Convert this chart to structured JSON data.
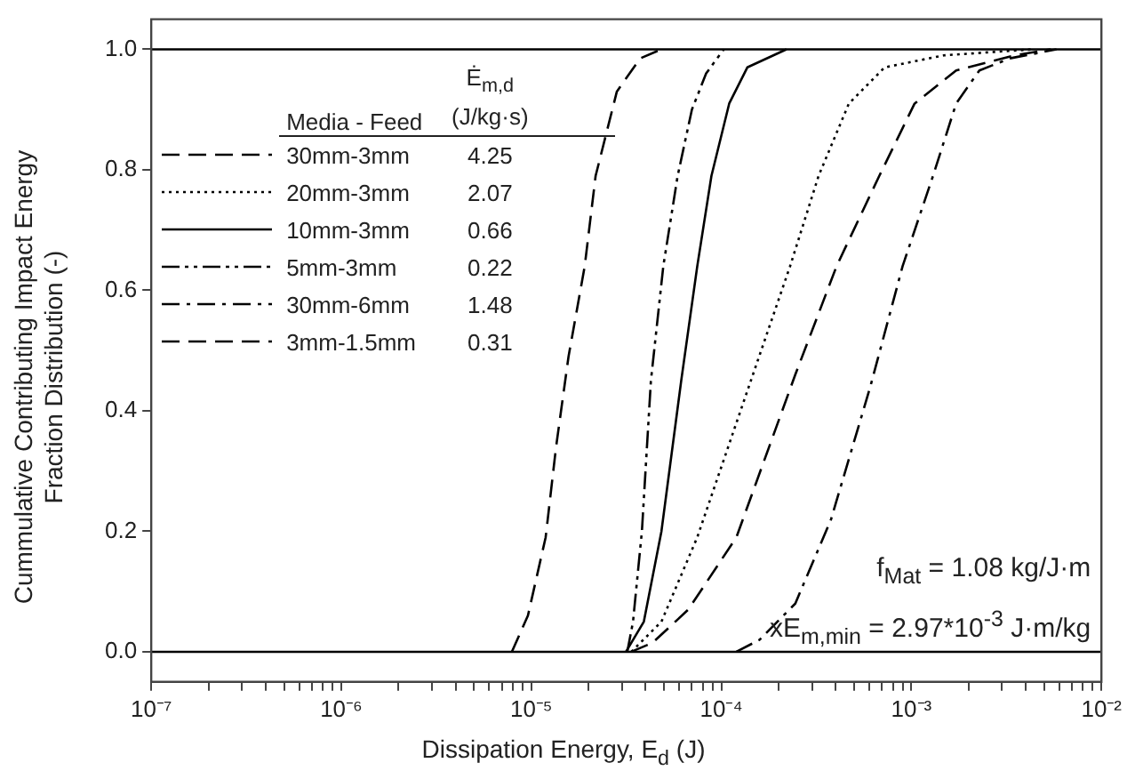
{
  "chart_data": {
    "type": "line",
    "xlabel": "Dissipation Energy, E$_{d}$ (J)",
    "ylabel": "Cummulative Contributing Impact Energy\nFraction Distribution (-)",
    "legend_title": "Media - Feed",
    "log": "x",
    "marker": "none",
    "grid": false,
    "legend": "top left",
    "xlim": [
      1e-07,
      0.01
    ],
    "ylim": [
      -0.05,
      1.05
    ],
    "xticks": [
      {
        "value": 1e-07,
        "label": "10⁻⁷"
      },
      {
        "value": 2e-07,
        "label": null
      },
      {
        "value": 3e-07,
        "label": null
      },
      {
        "value": 4e-07,
        "label": null
      },
      {
        "value": 5e-07,
        "label": null
      },
      {
        "value": 6e-07,
        "label": null
      },
      {
        "value": 7e-07,
        "label": null
      },
      {
        "value": 8e-07,
        "label": null
      },
      {
        "value": 9e-07,
        "label": null
      },
      {
        "value": 1e-06,
        "label": "10⁻⁶"
      },
      {
        "value": 2e-06,
        "label": null
      },
      {
        "value": 3e-06,
        "label": null
      },
      {
        "value": 4e-06,
        "label": null
      },
      {
        "value": 5e-06,
        "label": null
      },
      {
        "value": 6e-06,
        "label": null
      },
      {
        "value": 7e-06,
        "label": null
      },
      {
        "value": 8e-06,
        "label": null
      },
      {
        "value": 9e-06,
        "label": null
      },
      {
        "value": 1e-05,
        "label": "10⁻⁵"
      },
      {
        "value": 2e-05,
        "label": null
      },
      {
        "value": 3e-05,
        "label": null
      },
      {
        "value": 4e-05,
        "label": null
      },
      {
        "value": 5e-05,
        "label": null
      },
      {
        "value": 6e-05,
        "label": null
      },
      {
        "value": 7e-05,
        "label": null
      },
      {
        "value": 8e-05,
        "label": null
      },
      {
        "value": 9e-05,
        "label": null
      },
      {
        "value": 0.0001,
        "label": "10⁻⁴"
      },
      {
        "value": 0.0002,
        "label": null
      },
      {
        "value": 0.0003,
        "label": null
      },
      {
        "value": 0.0004,
        "label": null
      },
      {
        "value": 0.0005,
        "label": null
      },
      {
        "value": 0.0006,
        "label": null
      },
      {
        "value": 0.0007,
        "label": null
      },
      {
        "value": 0.0008,
        "label": null
      },
      {
        "value": 0.0009,
        "label": null
      },
      {
        "value": 0.001,
        "label": "10⁻³"
      },
      {
        "value": 0.002,
        "label": null
      },
      {
        "value": 0.003,
        "label": null
      },
      {
        "value": 0.004,
        "label": null
      },
      {
        "value": 0.005,
        "label": null
      },
      {
        "value": 0.006,
        "label": null
      },
      {
        "value": 0.007,
        "label": null
      },
      {
        "value": 0.008,
        "label": null
      },
      {
        "value": 0.009,
        "label": null
      },
      {
        "value": 0.01,
        "label": "10⁻²"
      }
    ],
    "yticks": [
      {
        "value": 0,
        "label": "0.0"
      },
      {
        "value": 0.2,
        "label": "0.2"
      },
      {
        "value": 0.4,
        "label": "0.4"
      },
      {
        "value": 0.6,
        "label": "0.6"
      },
      {
        "value": 0.8,
        "label": "0.8"
      },
      {
        "value": 1,
        "label": "1.0"
      }
    ],
    "ref_lines": [
      {
        "axis": "y",
        "value": 0,
        "color": "#000000",
        "line_style": "solid"
      },
      {
        "axis": "y",
        "value": 1,
        "color": "#000000",
        "line_style": "solid"
      }
    ],
    "series": [
      {
        "name": "30mm-3mm",
        "color": "#000000",
        "line_style": "dashed",
        "x": [
          3.36e-05,
          4.35e-05,
          6.7e-05,
          0.00012,
          0.000245,
          0.000404,
          0.000678,
          0.00104,
          0.00172,
          0.00351,
          0.0054
        ],
        "values": [
          0,
          0.015,
          0.07,
          0.19,
          0.46,
          0.64,
          0.79,
          0.91,
          0.965,
          0.99,
          1
        ]
      },
      {
        "name": "20mm-3mm",
        "color": "#000000",
        "line_style": "dotted",
        "x": [
          3.36e-05,
          4.84e-05,
          7.47e-05,
          0.000143,
          0.00023,
          0.000325,
          0.000469,
          0.000723,
          0.00148,
          0.00435
        ],
        "values": [
          0,
          0.05,
          0.19,
          0.45,
          0.64,
          0.79,
          0.91,
          0.97,
          0.99,
          1
        ]
      },
      {
        "name": "10mm-3mm",
        "color": "#000000",
        "line_style": "solid",
        "x": [
          3.15e-05,
          3.91e-05,
          4.84e-05,
          6.15e-05,
          7.47e-05,
          8.87e-05,
          0.00011,
          0.000137,
          0.00022
        ],
        "values": [
          0,
          0.05,
          0.2,
          0.45,
          0.64,
          0.79,
          0.91,
          0.97,
          1
        ]
      },
      {
        "name": "5mm-3mm",
        "color": "#000000",
        "line_style": "dashdotdot",
        "x": [
          3.2e-05,
          3.43e-05,
          3.82e-05,
          4.26e-05,
          4.95e-05,
          5.89e-05,
          7e-05,
          8.32e-05,
          0.000103
        ],
        "values": [
          0,
          0.05,
          0.2,
          0.45,
          0.64,
          0.79,
          0.9,
          0.96,
          1
        ]
      },
      {
        "name": "30mm-6mm",
        "color": "#000000",
        "line_style": "dashdot",
        "x": [
          0.00012,
          0.000159,
          0.000245,
          0.000378,
          0.000608,
          0.000899,
          0.0013,
          0.00172,
          0.00228,
          0.0033,
          0.0058
        ],
        "values": [
          0,
          0.02,
          0.08,
          0.22,
          0.44,
          0.64,
          0.79,
          0.91,
          0.965,
          0.985,
          1
        ]
      },
      {
        "name": "3mm-1.5mm",
        "color": "#000000",
        "line_style": "dashed",
        "x": [
          7.9e-06,
          9.6e-06,
          1.19e-05,
          1.35e-05,
          1.57e-05,
          1.91e-05,
          2.18e-05,
          2.82e-05,
          3.74e-05,
          4.84e-05
        ],
        "values": [
          0,
          0.06,
          0.19,
          0.34,
          0.49,
          0.64,
          0.79,
          0.93,
          0.985,
          1
        ]
      }
    ],
    "annotations": [
      "Ė$_{m,d}$ (J/kg·s)",
      "4.25",
      "2.07",
      "0.66",
      "0.22",
      "1.48",
      "0.31",
      "f$_{Mat}$ = 1.08 kg/J·m",
      "xE$_{m,min}$ = 2.97*10$^{-3}$ J·m/kg"
    ]
  }
}
